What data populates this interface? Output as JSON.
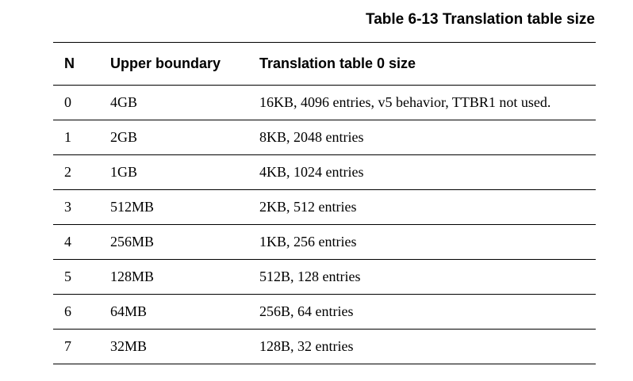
{
  "caption": "Table 6-13 Translation table size",
  "table": {
    "headers": [
      "N",
      "Upper boundary",
      "Translation table 0 size"
    ],
    "rows": [
      [
        "0",
        "4GB",
        "16KB, 4096 entries, v5 behavior, TTBR1 not used."
      ],
      [
        "1",
        "2GB",
        "8KB, 2048 entries"
      ],
      [
        "2",
        "1GB",
        "4KB, 1024 entries"
      ],
      [
        "3",
        "512MB",
        "2KB, 512 entries"
      ],
      [
        "4",
        "256MB",
        "1KB, 256 entries"
      ],
      [
        "5",
        "128MB",
        "512B, 128 entries"
      ],
      [
        "6",
        "64MB",
        "256B, 64 entries"
      ],
      [
        "7",
        "32MB",
        "128B, 32 entries"
      ]
    ]
  }
}
